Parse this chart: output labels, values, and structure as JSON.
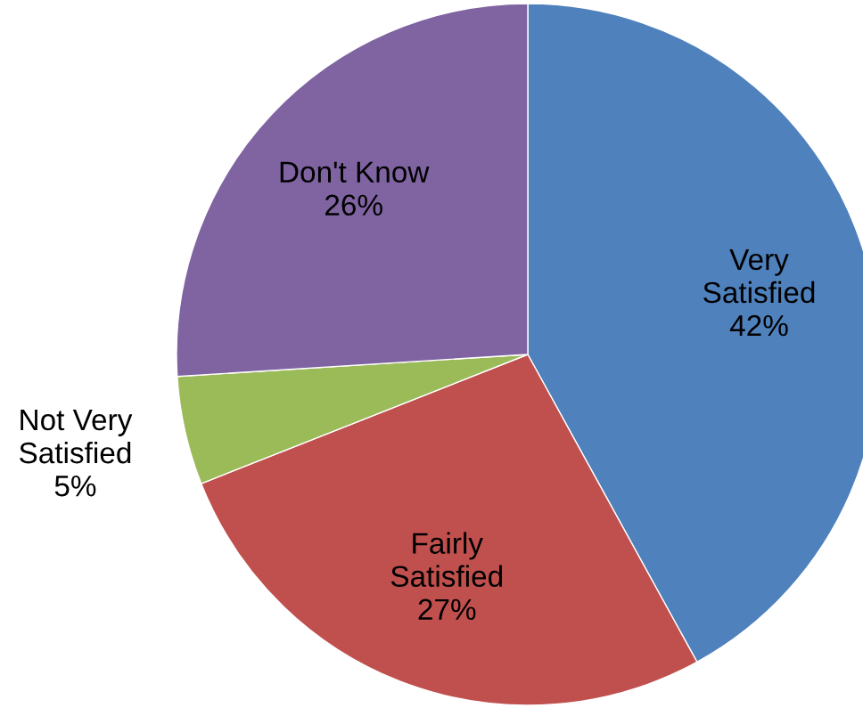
{
  "chart_data": {
    "type": "pie",
    "categories": [
      "Very Satisfied",
      "Fairly Satisfied",
      "Not Very Satisfied",
      "Don't Know"
    ],
    "values": [
      42,
      27,
      5,
      26
    ],
    "value_labels": [
      "42%",
      "27%",
      "5%",
      "26%"
    ],
    "colors": [
      "#4f81bd",
      "#c0504d",
      "#9bbb59",
      "#8064a2"
    ]
  }
}
